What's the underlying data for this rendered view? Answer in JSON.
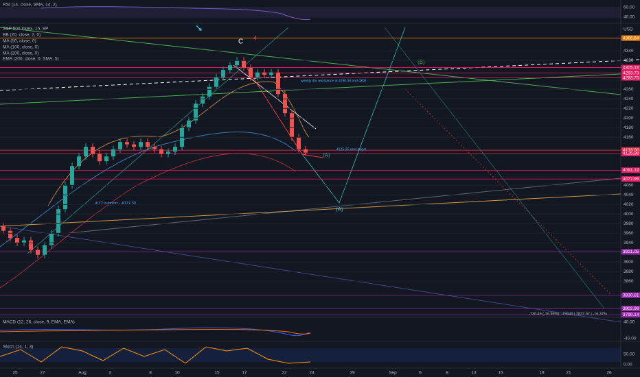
{
  "rsi": {
    "label": "RSI (14, close, SMA, 14, 2)",
    "ticks": [
      "60.00",
      "40.00"
    ]
  },
  "main": {
    "labels": [
      "S&P 500 Index, 1h, SP",
      "BB (20, close, 2, 0)",
      "MA (50, close, 0)",
      "MA (100, close, 0)",
      "MA (200, close, 0)",
      "EMA (200, close, 0, SMA, 5)"
    ],
    "currency": "USD",
    "ylim": [
      3786,
      4396
    ],
    "yticks": [
      4340,
      4320,
      4260,
      4240,
      4220,
      4200,
      4180,
      4160,
      4060,
      4040,
      4020,
      4000,
      3980,
      3960,
      3940,
      3900,
      3880,
      3860
    ],
    "levels": [
      {
        "value": 4366.64,
        "label": "4366.64",
        "color": "#f57c00"
      },
      {
        "value": 4305.19,
        "label": "4305.19",
        "color": "#e91e63"
      },
      {
        "value": 4293.73,
        "label": "4293.73",
        "color": "#e91e63"
      },
      {
        "value": 4283.73,
        "label": "4283.73",
        "color": "#e91e63"
      },
      {
        "value": 4133,
        "label": "4133.00",
        "color": "#f23645"
      },
      {
        "value": 4125.98,
        "label": "4125.98",
        "color": "#e91e63"
      },
      {
        "value": 4091.19,
        "label": "4091.19",
        "color": "#e91e63"
      },
      {
        "value": 4072.95,
        "label": "4072.95",
        "color": "#e91e63"
      },
      {
        "value": 3921.05,
        "label": "3921.05",
        "color": "#9c27b0"
      },
      {
        "value": 3830.81,
        "label": "3830.81",
        "color": "#9c27b0"
      },
      {
        "value": 3802.99,
        "label": "3802.99",
        "color": "#9c27b0"
      },
      {
        "value": 3790.14,
        "label": "3790.14",
        "color": "#9c27b0"
      }
    ],
    "candles": [
      [
        3975,
        3982,
        3958,
        3965
      ],
      [
        3965,
        3972,
        3943,
        3950
      ],
      [
        3950,
        3957,
        3933,
        3940
      ],
      [
        3940,
        3952,
        3933,
        3945
      ],
      [
        3945,
        3952,
        3918,
        3925
      ],
      [
        3925,
        3932,
        3908,
        3915
      ],
      [
        3915,
        3942,
        3908,
        3935
      ],
      [
        3935,
        3967,
        3928,
        3960
      ],
      [
        3960,
        4017,
        3953,
        4010
      ],
      [
        4010,
        4067,
        4003,
        4060
      ],
      [
        4060,
        4107,
        4053,
        4100
      ],
      [
        4100,
        4127,
        4093,
        4120
      ],
      [
        4120,
        4147,
        4113,
        4140
      ],
      [
        4140,
        4147,
        4118,
        4125
      ],
      [
        4125,
        4132,
        4103,
        4110
      ],
      [
        4110,
        4127,
        4103,
        4120
      ],
      [
        4120,
        4142,
        4113,
        4135
      ],
      [
        4135,
        4157,
        4128,
        4150
      ],
      [
        4150,
        4157,
        4138,
        4145
      ],
      [
        4145,
        4152,
        4133,
        4140
      ],
      [
        4140,
        4157,
        4133,
        4150
      ],
      [
        4150,
        4157,
        4133,
        4140
      ],
      [
        4140,
        4147,
        4128,
        4135
      ],
      [
        4135,
        4142,
        4118,
        4125
      ],
      [
        4125,
        4137,
        4118,
        4130
      ],
      [
        4130,
        4147,
        4123,
        4140
      ],
      [
        4140,
        4187,
        4133,
        4180
      ],
      [
        4180,
        4202,
        4173,
        4195
      ],
      [
        4195,
        4237,
        4188,
        4230
      ],
      [
        4230,
        4252,
        4223,
        4245
      ],
      [
        4245,
        4272,
        4238,
        4265
      ],
      [
        4265,
        4292,
        4258,
        4285
      ],
      [
        4285,
        4307,
        4278,
        4300
      ],
      [
        4300,
        4317,
        4293,
        4310
      ],
      [
        4310,
        4327,
        4303,
        4320
      ],
      [
        4320,
        4327,
        4298,
        4305
      ],
      [
        4305,
        4312,
        4278,
        4285
      ],
      [
        4285,
        4302,
        4278,
        4295
      ],
      [
        4295,
        4302,
        4283,
        4290
      ],
      [
        4290,
        4302,
        4283,
        4295
      ],
      [
        4295,
        4302,
        4243,
        4250
      ],
      [
        4250,
        4257,
        4203,
        4210
      ],
      [
        4210,
        4217,
        4153,
        4160
      ],
      [
        4160,
        4167,
        4128,
        4135
      ],
      [
        4135,
        4142,
        4121,
        4128
      ]
    ],
    "annotations": {
      "wave_c": "C",
      "wave_4": "4",
      "wave_b": "(B)",
      "wave_a1": "(A)",
      "wave_a2": "(A)",
      "support": "4/12 support - 4027.50",
      "resistance": "weekly 4hr resistance at 4280.00 and 4300",
      "target": "4125-35 next target",
      "measure": "-730.49 (-16.99%), -73049 | 2837.97 | -16.37%"
    }
  },
  "macd": {
    "label": "MACD (12, 26, close, 9, EMA, EMA)",
    "ticks": [
      "40.00",
      "-40.00"
    ]
  },
  "stoch": {
    "label": "Stoch (14, 1, 3)",
    "ticks": [
      "50.00",
      "0.00"
    ]
  },
  "dates": [
    "25",
    "27",
    "Aug",
    "3",
    "8",
    "10",
    "15",
    "17",
    "22",
    "24",
    "29",
    "Sep",
    "6",
    "8",
    "13",
    "15",
    "19",
    "21",
    "26"
  ]
}
